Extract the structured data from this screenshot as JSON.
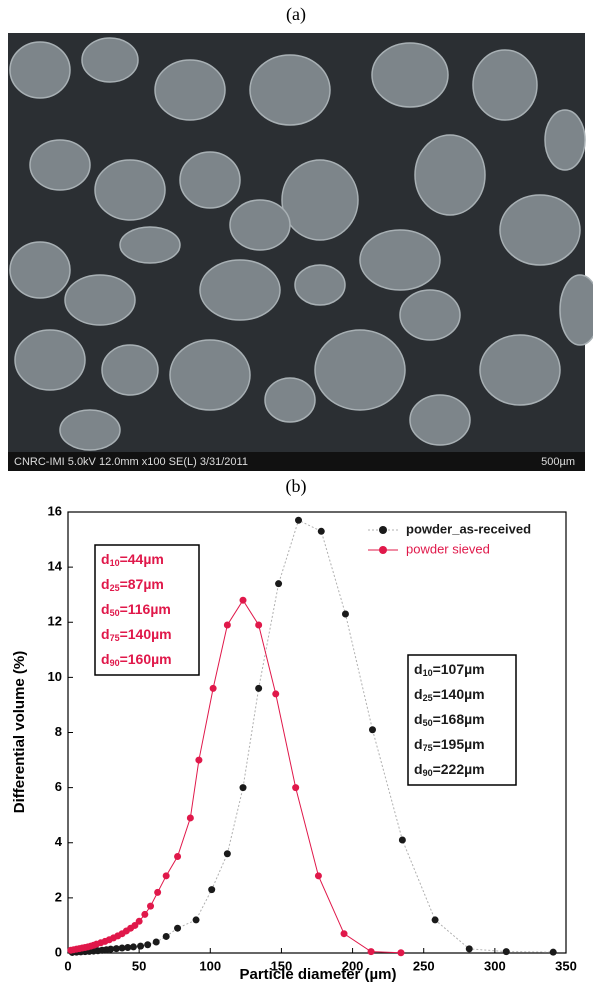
{
  "panel_labels": [
    "(a)",
    "(b)"
  ],
  "image": {
    "caption": "CNRC-IMI 5.0kV 12.0mm x100 SE(L) 3/31/2011",
    "scale_label": "500µm"
  },
  "chart_data": {
    "type": "scatter",
    "x_label": "Particle diameter (µm)",
    "y_label": "Differential volume (%)",
    "xlim": [
      0,
      350
    ],
    "ylim": [
      0,
      16
    ],
    "xticks": [
      0,
      50,
      100,
      150,
      200,
      250,
      300,
      350
    ],
    "yticks": [
      0,
      2,
      4,
      6,
      8,
      10,
      12,
      14,
      16
    ],
    "legend": "top-right",
    "series": [
      {
        "name": "powder_as-received",
        "color": "#1a1a1a",
        "line_color": "#b0b0b0",
        "x": [
          3,
          6,
          9,
          12,
          15,
          18,
          21,
          24,
          27,
          30,
          34,
          38,
          42,
          46,
          51,
          56,
          62,
          69,
          77,
          90,
          101,
          112,
          123,
          134,
          148,
          162,
          178,
          195,
          214,
          235,
          258,
          282,
          308,
          341
        ],
        "values": [
          0.02,
          0.03,
          0.04,
          0.05,
          0.06,
          0.07,
          0.08,
          0.1,
          0.12,
          0.14,
          0.16,
          0.18,
          0.2,
          0.22,
          0.25,
          0.3,
          0.4,
          0.6,
          0.9,
          1.2,
          2.3,
          3.6,
          6.0,
          9.6,
          13.4,
          15.7,
          15.3,
          12.3,
          8.1,
          4.1,
          1.2,
          0.15,
          0.05,
          0.03
        ]
      },
      {
        "name": "powder sieved",
        "color": "#e0184a",
        "line_color": "#e0184a",
        "x": [
          2,
          4,
          6,
          8,
          10,
          12,
          14,
          16,
          18,
          20,
          23,
          26,
          29,
          32,
          35,
          38,
          41,
          44,
          47,
          50,
          54,
          58,
          63,
          69,
          77,
          86,
          92,
          102,
          112,
          123,
          134,
          146,
          160,
          176,
          194,
          213,
          234
        ],
        "values": [
          0.1,
          0.12,
          0.14,
          0.16,
          0.18,
          0.2,
          0.22,
          0.25,
          0.28,
          0.32,
          0.37,
          0.42,
          0.48,
          0.55,
          0.62,
          0.7,
          0.8,
          0.9,
          1.0,
          1.15,
          1.4,
          1.7,
          2.2,
          2.8,
          3.5,
          4.9,
          7.0,
          9.6,
          11.9,
          12.8,
          11.9,
          9.4,
          6.0,
          2.8,
          0.7,
          0.05,
          0.01
        ]
      }
    ],
    "annotations": [
      {
        "color": "#e0184a",
        "lines": [
          {
            "base": "d",
            "sub": "10",
            "rest": "=44µm"
          },
          {
            "base": "d",
            "sub": "25",
            "rest": "=87µm"
          },
          {
            "base": "d",
            "sub": "50",
            "rest": "=116µm"
          },
          {
            "base": "d",
            "sub": "75",
            "rest": "=140µm"
          },
          {
            "base": "d",
            "sub": "90",
            "rest": "=160µm"
          }
        ]
      },
      {
        "color": "#1a1a1a",
        "lines": [
          {
            "base": "d",
            "sub": "10",
            "rest": "=107µm"
          },
          {
            "base": "d",
            "sub": "25",
            "rest": "=140µm"
          },
          {
            "base": "d",
            "sub": "50",
            "rest": "=168µm"
          },
          {
            "base": "d",
            "sub": "75",
            "rest": "=195µm"
          },
          {
            "base": "d",
            "sub": "90",
            "rest": "=222µm"
          }
        ]
      }
    ]
  }
}
